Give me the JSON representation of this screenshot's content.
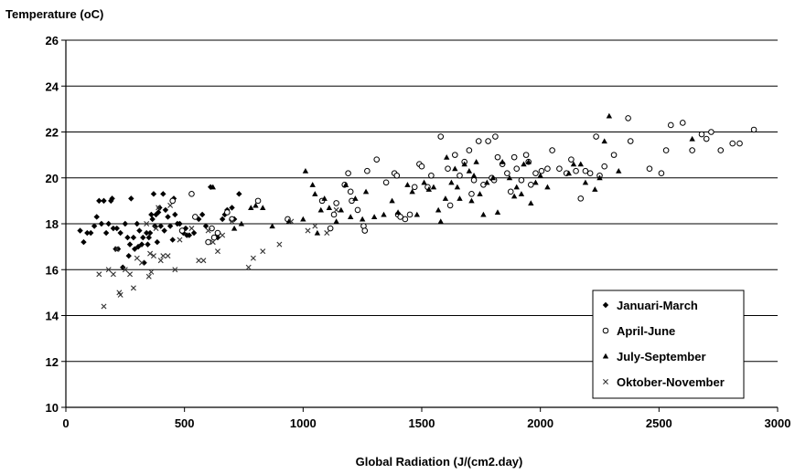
{
  "chart_data": {
    "type": "scatter",
    "title": "",
    "ylabel": "Temperature (oC)",
    "xlabel": "Global Radiation (J/(cm2.day)",
    "xlim": [
      0,
      3000
    ],
    "ylim": [
      10,
      26
    ],
    "xticks": [
      "0",
      "500",
      "1000",
      "1500",
      "2000",
      "2500",
      "3000"
    ],
    "yticks": [
      "10",
      "12",
      "14",
      "16",
      "18",
      "20",
      "22",
      "24",
      "26"
    ],
    "grid": "horizontal",
    "legend_position": "bottom-right",
    "series": [
      {
        "name": "Januari-March",
        "marker": "diamond",
        "color": "#000000",
        "points": [
          [
            60,
            17.7
          ],
          [
            75,
            17.2
          ],
          [
            90,
            17.6
          ],
          [
            105,
            17.6
          ],
          [
            120,
            17.9
          ],
          [
            130,
            18.3
          ],
          [
            140,
            19.0
          ],
          [
            150,
            18.0
          ],
          [
            160,
            19.0
          ],
          [
            170,
            17.6
          ],
          [
            180,
            18.0
          ],
          [
            190,
            19.0
          ],
          [
            195,
            19.1
          ],
          [
            200,
            17.8
          ],
          [
            210,
            16.9
          ],
          [
            215,
            17.8
          ],
          [
            220,
            16.9
          ],
          [
            230,
            17.6
          ],
          [
            240,
            16.1
          ],
          [
            250,
            18.0
          ],
          [
            260,
            17.4
          ],
          [
            265,
            16.6
          ],
          [
            270,
            17.1
          ],
          [
            275,
            19.1
          ],
          [
            285,
            17.4
          ],
          [
            290,
            16.9
          ],
          [
            300,
            18.0
          ],
          [
            305,
            17.0
          ],
          [
            310,
            17.7
          ],
          [
            320,
            17.1
          ],
          [
            325,
            17.4
          ],
          [
            330,
            16.3
          ],
          [
            340,
            17.6
          ],
          [
            345,
            17.1
          ],
          [
            350,
            17.4
          ],
          [
            355,
            17.6
          ],
          [
            360,
            18.4
          ],
          [
            365,
            18.2
          ],
          [
            370,
            19.3
          ],
          [
            375,
            17.9
          ],
          [
            380,
            18.4
          ],
          [
            385,
            17.2
          ],
          [
            390,
            18.5
          ],
          [
            395,
            18.7
          ],
          [
            400,
            17.9
          ],
          [
            410,
            19.3
          ],
          [
            415,
            17.7
          ],
          [
            420,
            18.6
          ],
          [
            430,
            18.3
          ],
          [
            440,
            17.9
          ],
          [
            450,
            17.3
          ],
          [
            455,
            19.1
          ],
          [
            460,
            18.4
          ],
          [
            470,
            18.0
          ],
          [
            480,
            18.0
          ],
          [
            495,
            17.6
          ],
          [
            505,
            17.8
          ],
          [
            510,
            17.5
          ],
          [
            520,
            17.5
          ],
          [
            540,
            17.6
          ],
          [
            560,
            18.2
          ],
          [
            575,
            18.4
          ],
          [
            590,
            17.9
          ],
          [
            610,
            19.6
          ],
          [
            640,
            17.4
          ],
          [
            660,
            18.2
          ],
          [
            670,
            18.4
          ],
          [
            680,
            18.6
          ],
          [
            700,
            18.7
          ],
          [
            710,
            18.2
          ],
          [
            730,
            19.3
          ]
        ]
      },
      {
        "name": "April-June",
        "marker": "circle",
        "color": "#000000",
        "points": [
          [
            450,
            19.0
          ],
          [
            490,
            17.7
          ],
          [
            530,
            19.3
          ],
          [
            545,
            18.3
          ],
          [
            600,
            17.2
          ],
          [
            615,
            17.8
          ],
          [
            625,
            17.4
          ],
          [
            640,
            17.6
          ],
          [
            680,
            18.5
          ],
          [
            700,
            18.2
          ],
          [
            810,
            19.0
          ],
          [
            935,
            18.2
          ],
          [
            1080,
            19.0
          ],
          [
            1115,
            17.8
          ],
          [
            1130,
            18.4
          ],
          [
            1140,
            18.9
          ],
          [
            1175,
            19.7
          ],
          [
            1190,
            20.2
          ],
          [
            1200,
            19.4
          ],
          [
            1205,
            19.0
          ],
          [
            1230,
            18.6
          ],
          [
            1255,
            17.9
          ],
          [
            1260,
            17.7
          ],
          [
            1270,
            20.3
          ],
          [
            1310,
            20.8
          ],
          [
            1350,
            19.8
          ],
          [
            1385,
            20.2
          ],
          [
            1395,
            20.1
          ],
          [
            1400,
            18.4
          ],
          [
            1410,
            18.3
          ],
          [
            1430,
            18.2
          ],
          [
            1450,
            18.4
          ],
          [
            1470,
            19.6
          ],
          [
            1490,
            20.6
          ],
          [
            1500,
            20.5
          ],
          [
            1525,
            19.6
          ],
          [
            1540,
            20.1
          ],
          [
            1580,
            21.8
          ],
          [
            1610,
            20.4
          ],
          [
            1620,
            18.8
          ],
          [
            1640,
            21.0
          ],
          [
            1660,
            20.1
          ],
          [
            1680,
            20.7
          ],
          [
            1700,
            21.2
          ],
          [
            1710,
            19.3
          ],
          [
            1720,
            19.9
          ],
          [
            1740,
            21.6
          ],
          [
            1760,
            19.7
          ],
          [
            1780,
            21.6
          ],
          [
            1795,
            20.0
          ],
          [
            1805,
            19.9
          ],
          [
            1810,
            21.8
          ],
          [
            1820,
            20.9
          ],
          [
            1840,
            20.6
          ],
          [
            1860,
            20.2
          ],
          [
            1875,
            19.4
          ],
          [
            1890,
            20.9
          ],
          [
            1900,
            20.4
          ],
          [
            1920,
            19.9
          ],
          [
            1940,
            21.0
          ],
          [
            1950,
            20.7
          ],
          [
            1960,
            19.7
          ],
          [
            1980,
            20.2
          ],
          [
            2005,
            20.3
          ],
          [
            2030,
            20.4
          ],
          [
            2050,
            21.2
          ],
          [
            2080,
            20.4
          ],
          [
            2110,
            20.2
          ],
          [
            2130,
            20.8
          ],
          [
            2150,
            20.3
          ],
          [
            2170,
            19.1
          ],
          [
            2190,
            20.3
          ],
          [
            2210,
            20.2
          ],
          [
            2235,
            21.8
          ],
          [
            2250,
            20.1
          ],
          [
            2270,
            20.5
          ],
          [
            2310,
            21.0
          ],
          [
            2370,
            22.6
          ],
          [
            2380,
            21.6
          ],
          [
            2460,
            20.4
          ],
          [
            2510,
            20.2
          ],
          [
            2530,
            21.2
          ],
          [
            2550,
            22.3
          ],
          [
            2600,
            22.4
          ],
          [
            2640,
            21.2
          ],
          [
            2680,
            21.9
          ],
          [
            2700,
            21.7
          ],
          [
            2720,
            22.0
          ],
          [
            2760,
            21.2
          ],
          [
            2810,
            21.5
          ],
          [
            2840,
            21.5
          ],
          [
            2900,
            22.1
          ]
        ]
      },
      {
        "name": "July-September",
        "marker": "triangle",
        "color": "#000000",
        "points": [
          [
            620,
            19.6
          ],
          [
            710,
            17.8
          ],
          [
            740,
            18.0
          ],
          [
            780,
            18.7
          ],
          [
            800,
            18.8
          ],
          [
            830,
            18.7
          ],
          [
            870,
            17.9
          ],
          [
            940,
            18.1
          ],
          [
            1000,
            18.2
          ],
          [
            1010,
            20.3
          ],
          [
            1040,
            19.7
          ],
          [
            1050,
            19.3
          ],
          [
            1060,
            17.6
          ],
          [
            1075,
            18.6
          ],
          [
            1090,
            19.1
          ],
          [
            1110,
            18.7
          ],
          [
            1140,
            18.1
          ],
          [
            1160,
            18.6
          ],
          [
            1180,
            19.7
          ],
          [
            1200,
            18.3
          ],
          [
            1220,
            19.1
          ],
          [
            1250,
            18.2
          ],
          [
            1265,
            19.4
          ],
          [
            1300,
            18.3
          ],
          [
            1340,
            18.4
          ],
          [
            1375,
            19.0
          ],
          [
            1400,
            18.5
          ],
          [
            1440,
            19.7
          ],
          [
            1460,
            19.4
          ],
          [
            1480,
            18.4
          ],
          [
            1510,
            19.8
          ],
          [
            1530,
            19.5
          ],
          [
            1550,
            19.6
          ],
          [
            1570,
            18.6
          ],
          [
            1580,
            18.1
          ],
          [
            1600,
            19.1
          ],
          [
            1605,
            20.9
          ],
          [
            1625,
            19.8
          ],
          [
            1640,
            20.4
          ],
          [
            1650,
            19.6
          ],
          [
            1660,
            19.1
          ],
          [
            1680,
            20.6
          ],
          [
            1700,
            20.3
          ],
          [
            1710,
            19.0
          ],
          [
            1720,
            20.1
          ],
          [
            1730,
            20.7
          ],
          [
            1745,
            19.3
          ],
          [
            1760,
            18.4
          ],
          [
            1775,
            19.8
          ],
          [
            1800,
            20.0
          ],
          [
            1820,
            18.5
          ],
          [
            1840,
            20.7
          ],
          [
            1870,
            20.0
          ],
          [
            1890,
            19.2
          ],
          [
            1900,
            19.6
          ],
          [
            1920,
            19.3
          ],
          [
            1930,
            20.6
          ],
          [
            1950,
            20.7
          ],
          [
            1960,
            18.9
          ],
          [
            1980,
            19.8
          ],
          [
            2000,
            20.1
          ],
          [
            2030,
            19.6
          ],
          [
            2120,
            20.2
          ],
          [
            2140,
            20.6
          ],
          [
            2170,
            20.6
          ],
          [
            2190,
            19.8
          ],
          [
            2230,
            19.5
          ],
          [
            2250,
            20.0
          ],
          [
            2270,
            21.6
          ],
          [
            2290,
            22.7
          ],
          [
            2330,
            20.3
          ],
          [
            2640,
            21.7
          ]
        ]
      },
      {
        "name": "Oktober-November",
        "marker": "x",
        "color": "#000000",
        "points": [
          [
            140,
            15.8
          ],
          [
            160,
            14.4
          ],
          [
            180,
            16.0
          ],
          [
            200,
            15.8
          ],
          [
            215,
            16.9
          ],
          [
            225,
            15.0
          ],
          [
            230,
            14.9
          ],
          [
            250,
            16.0
          ],
          [
            270,
            15.8
          ],
          [
            285,
            15.2
          ],
          [
            300,
            16.5
          ],
          [
            320,
            16.3
          ],
          [
            340,
            18.0
          ],
          [
            350,
            15.7
          ],
          [
            355,
            16.7
          ],
          [
            360,
            15.9
          ],
          [
            370,
            16.6
          ],
          [
            380,
            17.8
          ],
          [
            390,
            18.7
          ],
          [
            400,
            16.4
          ],
          [
            410,
            16.6
          ],
          [
            430,
            16.6
          ],
          [
            440,
            18.8
          ],
          [
            460,
            16.0
          ],
          [
            480,
            17.3
          ],
          [
            530,
            17.8
          ],
          [
            560,
            16.4
          ],
          [
            580,
            16.4
          ],
          [
            600,
            17.7
          ],
          [
            620,
            17.2
          ],
          [
            640,
            16.8
          ],
          [
            660,
            17.5
          ],
          [
            700,
            18.1
          ],
          [
            770,
            16.1
          ],
          [
            790,
            16.5
          ],
          [
            830,
            16.8
          ],
          [
            900,
            17.1
          ],
          [
            950,
            18.1
          ],
          [
            1020,
            17.7
          ],
          [
            1050,
            17.9
          ],
          [
            1100,
            17.6
          ],
          [
            1140,
            18.6
          ]
        ]
      }
    ]
  }
}
